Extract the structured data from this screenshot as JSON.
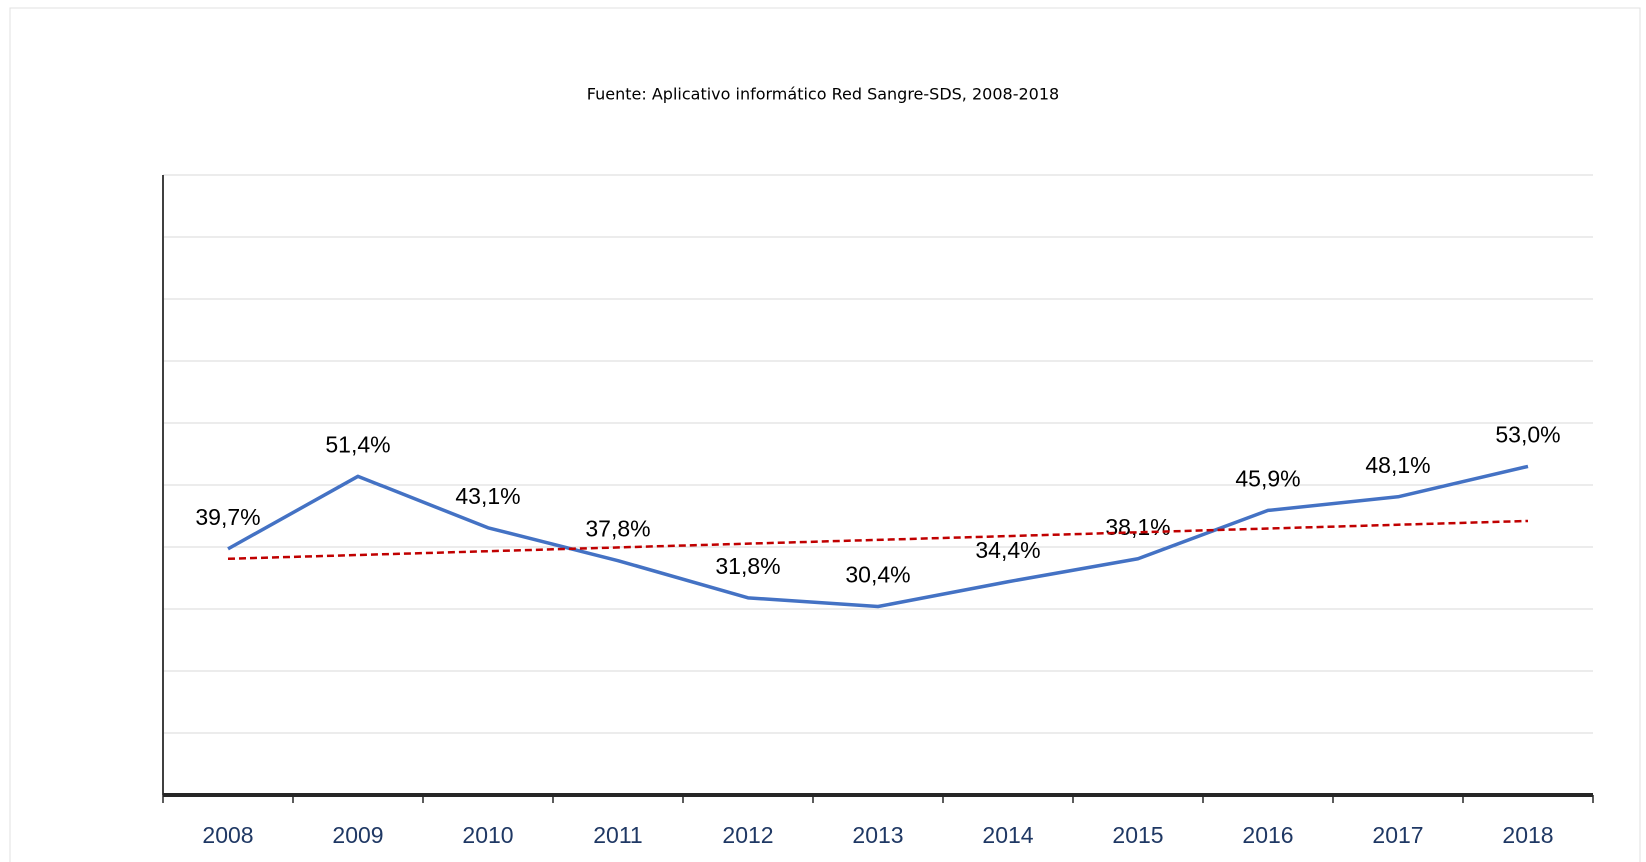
{
  "chart_data": {
    "type": "line",
    "title": "Fuente: Aplicativo informático Red Sangre-SDS, 2008-2018",
    "categories": [
      "2008",
      "2009",
      "2010",
      "2011",
      "2012",
      "2013",
      "2014",
      "2015",
      "2016",
      "2017",
      "2018"
    ],
    "series": [
      {
        "color": "#4472c4",
        "values": [
          39.7,
          51.4,
          43.1,
          37.8,
          31.8,
          30.4,
          34.4,
          38.1,
          45.9,
          48.1,
          53.0
        ],
        "value_labels": [
          "39,7%",
          "51,4%",
          "43,1%",
          "37,8%",
          "31,8%",
          "30,4%",
          "34,4%",
          "38,1%",
          "45,9%",
          "48,1%",
          "53,0%"
        ]
      }
    ],
    "trend": {
      "color": "#c00000",
      "values": [
        38.1,
        44.2
      ]
    },
    "ylim": [
      0,
      100
    ],
    "yticks": [
      0,
      10,
      20,
      30,
      40,
      50,
      60,
      70,
      80,
      90,
      100
    ],
    "grid": true
  }
}
